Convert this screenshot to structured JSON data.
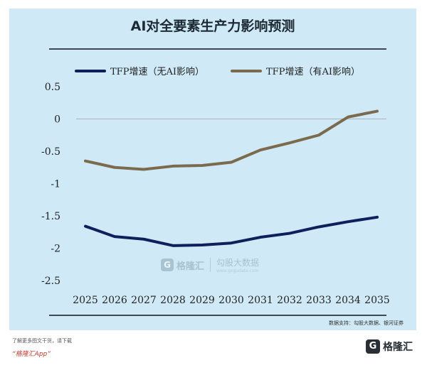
{
  "colors": {
    "panel_bg": "#cfeaf6",
    "series_no_ai": "#0f1f5c",
    "series_with_ai": "#7b6a4e",
    "zero_line": "#a9b4bb"
  },
  "footer": {
    "tip": "了解更多图文干货，请下载",
    "app": "“格隆汇App”",
    "brand_name": "格隆汇",
    "brand_icon": "G"
  },
  "watermark": {
    "icon": "G",
    "name": "格隆汇",
    "partner_name": "勾股大数据",
    "partner_url": "www.gogudata.com"
  },
  "chart_data": {
    "type": "line",
    "title": "AI对全要素生产力影响预测",
    "source": "数据支持：勾股大数据、银河证券",
    "xlabel": "",
    "ylabel": "",
    "x": [
      "2025",
      "2026",
      "2027",
      "2028",
      "2029",
      "2030",
      "2031",
      "2032",
      "2033",
      "2034",
      "2035"
    ],
    "ylim": [
      -2.5,
      0.5
    ],
    "yticks": [
      0.5,
      0,
      -0.5,
      -1,
      -1.5,
      -2,
      -2.5
    ],
    "ytick_labels": [
      "0.5",
      "0",
      "-0.5",
      "-1",
      "-1.5",
      "-2",
      "-2.5"
    ],
    "legend_position": "top",
    "grid": false,
    "series": [
      {
        "name": "TFP增速（无AI影响）",
        "color": "#0f1f5c",
        "values": [
          -1.66,
          -1.82,
          -1.86,
          -1.96,
          -1.95,
          -1.92,
          -1.83,
          -1.77,
          -1.67,
          -1.59,
          -1.52
        ]
      },
      {
        "name": "TFP增速（有AI影响）",
        "color": "#7b6a4e",
        "values": [
          -0.65,
          -0.75,
          -0.78,
          -0.73,
          -0.72,
          -0.67,
          -0.48,
          -0.37,
          -0.25,
          0.03,
          0.12
        ]
      }
    ]
  }
}
